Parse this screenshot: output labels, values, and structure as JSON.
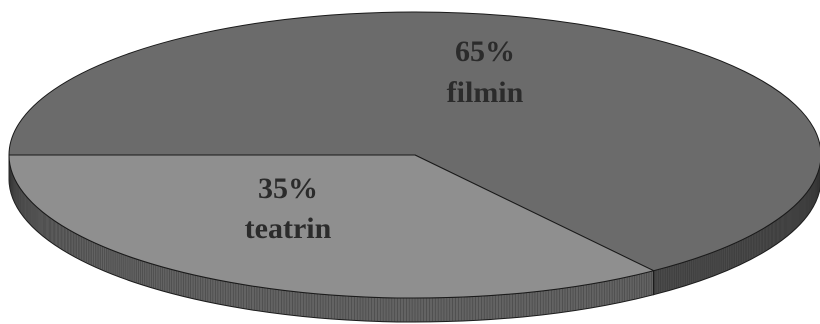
{
  "chart_data": {
    "type": "pie",
    "style": "3d",
    "slices": [
      {
        "percent_label": "65%",
        "name_label": "filmin",
        "value": 65,
        "color": "#6b6b6b",
        "side_color": "#4a4a4a"
      },
      {
        "percent_label": "35%",
        "name_label": "teatrin",
        "value": 35,
        "color": "#8f8f8f",
        "side_color": "#636363"
      }
    ],
    "outline_color": "#1a1a1a",
    "background": "#ffffff"
  }
}
